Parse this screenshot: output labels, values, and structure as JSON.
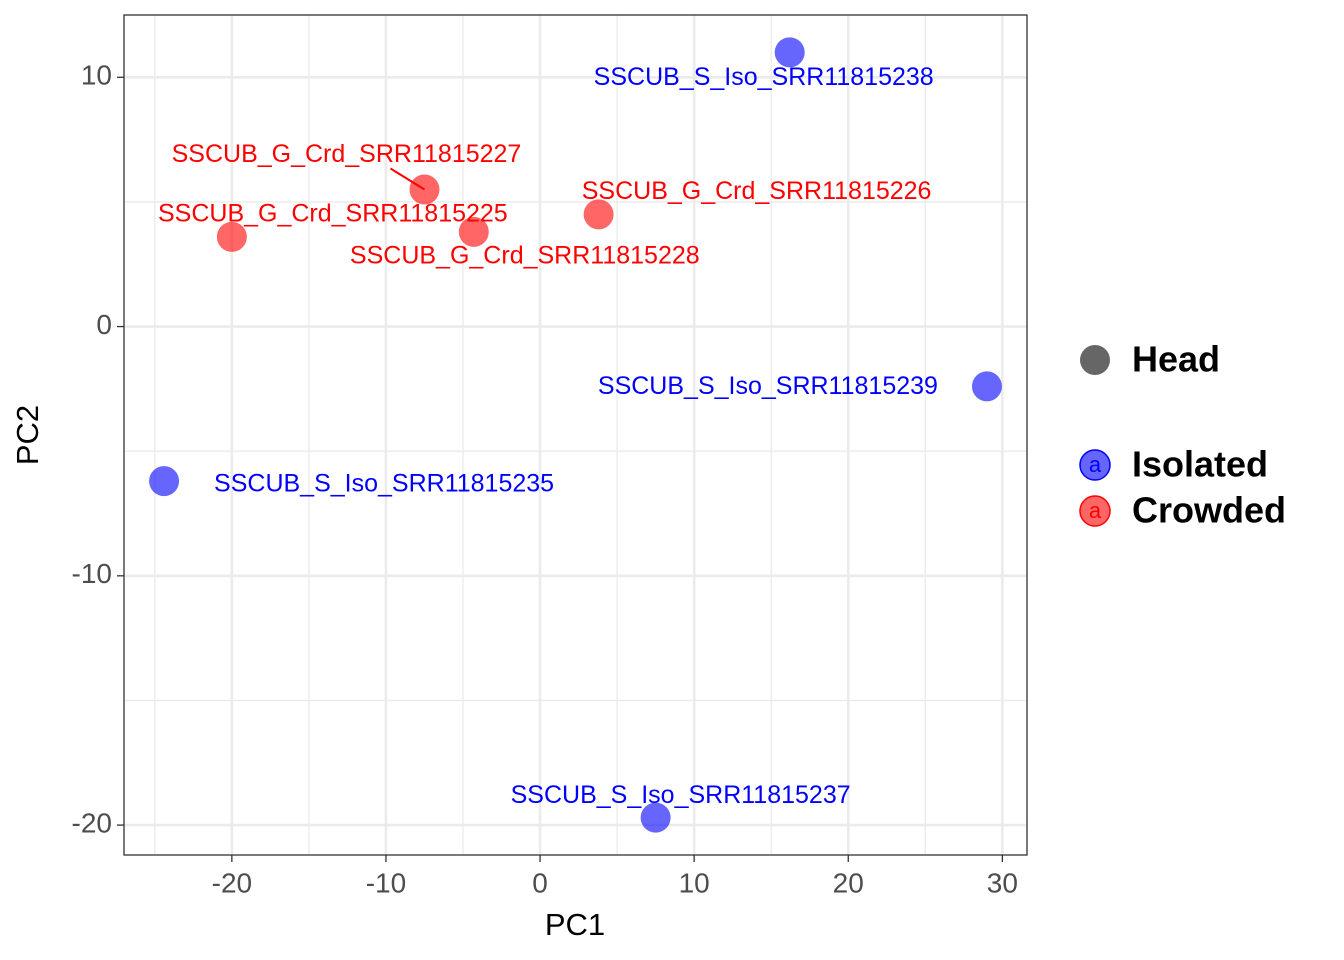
{
  "chart_data": {
    "type": "scatter",
    "x_label": "PC1",
    "y_label": "PC2",
    "xlim": [
      -27.0,
      31.6
    ],
    "ylim": [
      -21.2,
      12.5
    ],
    "xticks": [
      -20,
      -10,
      0,
      10,
      20,
      30
    ],
    "yticks": [
      -20,
      -10,
      0,
      10
    ],
    "grid": true,
    "shape_legend": "Head",
    "legend_position": "right",
    "series": [
      {
        "name": "Isolated",
        "color": "#0000ff",
        "x": [
          16.2,
          29.0,
          -24.4,
          7.5
        ],
        "y": [
          11.0,
          -2.4,
          -6.2,
          -19.7
        ],
        "labels": [
          "SSCUB_S_Iso_SRR11815238",
          "SSCUB_S_Iso_SRR11815239",
          "SSCUB_S_Iso_SRR11815235",
          "SSCUB_S_Iso_SRR11815237"
        ]
      },
      {
        "name": "Crowded",
        "color": "#ff0000",
        "x": [
          -7.5,
          3.8,
          -20.0,
          -4.3
        ],
        "y": [
          5.5,
          4.5,
          3.6,
          3.8
        ],
        "labels": [
          "SSCUB_G_Crd_SRR11815227",
          "SSCUB_G_Crd_SRR11815226",
          "SSCUB_G_Crd_SRR11815225",
          "SSCUB_G_Crd_SRR11815228"
        ]
      }
    ]
  }
}
